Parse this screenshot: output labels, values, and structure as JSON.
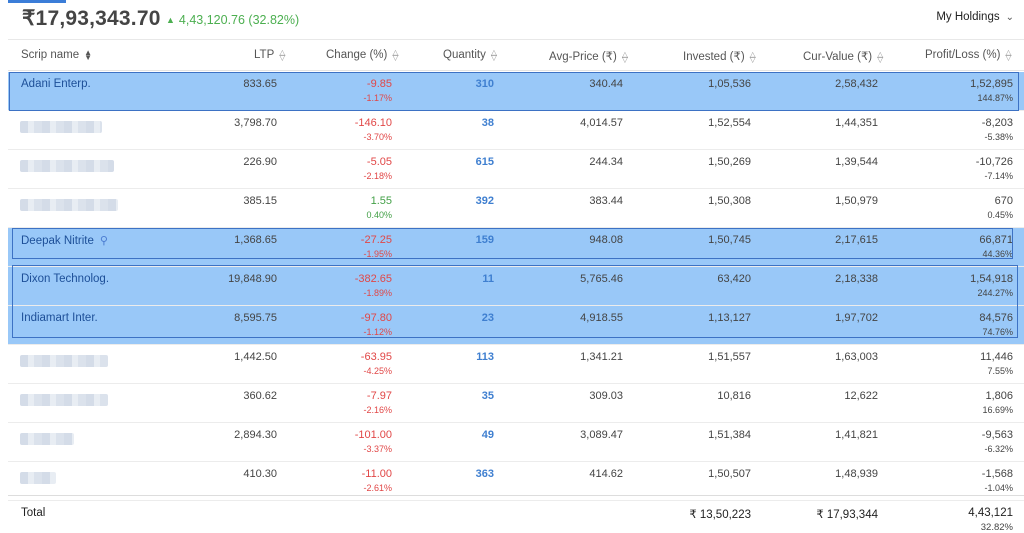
{
  "header": {
    "total_value": "₹17,93,343.70",
    "day_change": "4,43,120.76 (32.82%)",
    "holdings_select": "My Holdings"
  },
  "columns": [
    "Scrip name",
    "LTP",
    "Change (%)",
    "Quantity",
    "Avg-Price (₹)",
    "Invested (₹)",
    "Cur-Value (₹)",
    "Profit/Loss (%)"
  ],
  "rows": [
    {
      "name": "Adani Enterp.",
      "ltp": "833.65",
      "change": "-9.85",
      "change_pct": "-1.17%",
      "qty": "310",
      "avg": "340.44",
      "invested": "1,05,536",
      "cur": "2,58,432",
      "pl": "1,52,895",
      "pl_pct": "144.87%"
    },
    {
      "name": "",
      "ltp": "3,798.70",
      "change": "-146.10",
      "change_pct": "-3.70%",
      "qty": "38",
      "avg": "4,014.57",
      "invested": "1,52,554",
      "cur": "1,44,351",
      "pl": "-8,203",
      "pl_pct": "-5.38%"
    },
    {
      "name": "",
      "ltp": "226.90",
      "change": "-5.05",
      "change_pct": "-2.18%",
      "qty": "615",
      "avg": "244.34",
      "invested": "1,50,269",
      "cur": "1,39,544",
      "pl": "-10,726",
      "pl_pct": "-7.14%"
    },
    {
      "name": "",
      "ltp": "385.15",
      "change": "1.55",
      "change_pct": "0.40%",
      "qty": "392",
      "avg": "383.44",
      "invested": "1,50,308",
      "cur": "1,50,979",
      "pl": "670",
      "pl_pct": "0.45%"
    },
    {
      "name": "Deepak Nitrite",
      "ltp": "1,368.65",
      "change": "-27.25",
      "change_pct": "-1.95%",
      "qty": "159",
      "avg": "948.08",
      "invested": "1,50,745",
      "cur": "2,17,615",
      "pl": "66,871",
      "pl_pct": "44.36%"
    },
    {
      "name": "Dixon Technolog.",
      "ltp": "19,848.90",
      "change": "-382.65",
      "change_pct": "-1.89%",
      "qty": "11",
      "avg": "5,765.46",
      "invested": "63,420",
      "cur": "2,18,338",
      "pl": "1,54,918",
      "pl_pct": "244.27%"
    },
    {
      "name": "Indiamart Inter.",
      "ltp": "8,595.75",
      "change": "-97.80",
      "change_pct": "-1.12%",
      "qty": "23",
      "avg": "4,918.55",
      "invested": "1,13,127",
      "cur": "1,97,702",
      "pl": "84,576",
      "pl_pct": "74.76%"
    },
    {
      "name": "",
      "ltp": "1,442.50",
      "change": "-63.95",
      "change_pct": "-4.25%",
      "qty": "113",
      "avg": "1,341.21",
      "invested": "1,51,557",
      "cur": "1,63,003",
      "pl": "11,446",
      "pl_pct": "7.55%"
    },
    {
      "name": "",
      "ltp": "360.62",
      "change": "-7.97",
      "change_pct": "-2.16%",
      "qty": "35",
      "avg": "309.03",
      "invested": "10,816",
      "cur": "12,622",
      "pl": "1,806",
      "pl_pct": "16.69%"
    },
    {
      "name": "",
      "ltp": "2,894.30",
      "change": "-101.00",
      "change_pct": "-3.37%",
      "qty": "49",
      "avg": "3,089.47",
      "invested": "1,51,384",
      "cur": "1,41,821",
      "pl": "-9,563",
      "pl_pct": "-6.32%"
    },
    {
      "name": "",
      "ltp": "410.30",
      "change": "-11.00",
      "change_pct": "-2.61%",
      "qty": "363",
      "avg": "414.62",
      "invested": "1,50,507",
      "cur": "1,48,939",
      "pl": "-1,568",
      "pl_pct": "-1.04%"
    }
  ],
  "total": {
    "label": "Total",
    "invested": "₹ 13,50,223",
    "cur": "₹ 17,93,344",
    "pl": "4,43,121",
    "pl_pct": "32.82%"
  },
  "colors": {
    "selected_row": "#99c8f8",
    "loss": "#e14747",
    "gain": "#43a047",
    "accent": "#3f7fd0"
  }
}
